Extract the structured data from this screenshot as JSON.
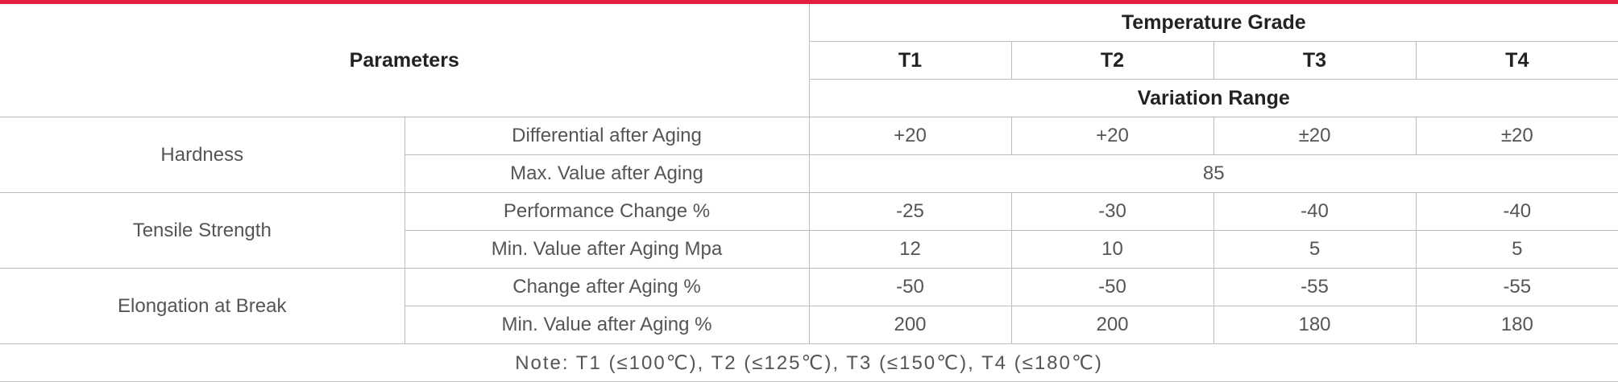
{
  "header": {
    "parameters": "Parameters",
    "temperature_grade": "Temperature Grade",
    "grades": [
      "T1",
      "T2",
      "T3",
      "T4"
    ],
    "variation_range": "Variation Range"
  },
  "groups": [
    {
      "name": "Hardness",
      "rows": [
        {
          "label": "Differential after Aging",
          "values": [
            "+20",
            "+20",
            "±20",
            "±20"
          ]
        },
        {
          "label": "Max. Value after Aging",
          "merged_value": "85"
        }
      ]
    },
    {
      "name": "Tensile Strength",
      "rows": [
        {
          "label": "Performance Change %",
          "values": [
            "-25",
            "-30",
            "-40",
            "-40"
          ]
        },
        {
          "label": "Min. Value after Aging Mpa",
          "values": [
            "12",
            "10",
            "5",
            "5"
          ]
        }
      ]
    },
    {
      "name": "Elongation at Break",
      "rows": [
        {
          "label": "Change after Aging %",
          "values": [
            "-50",
            "-50",
            "-55",
            "-55"
          ]
        },
        {
          "label": "Min. Value after Aging %",
          "values": [
            "200",
            "200",
            "180",
            "180"
          ]
        }
      ]
    }
  ],
  "note": "Note: T1 (≤100℃), T2 (≤125℃), T3 (≤150℃), T4 (≤180℃)"
}
